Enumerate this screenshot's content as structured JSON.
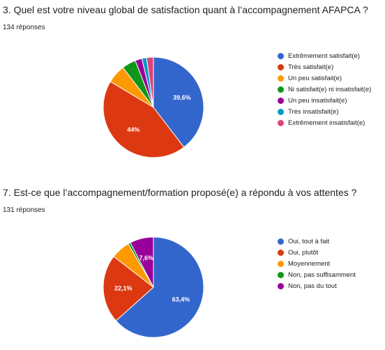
{
  "questions": [
    {
      "title": "3. Quel est votre niveau global de satisfaction quant à l’accompagnement AFAPCA ?",
      "responses": "134 réponses"
    },
    {
      "title": "7. Est-ce que l’accompagnement/formation proposé(e) a répondu à vos attentes ?",
      "responses": "131 réponses"
    }
  ],
  "chart_data": [
    {
      "type": "pie",
      "title": "3. Quel est votre niveau global de satisfaction quant à l’accompagnement AFAPCA ?",
      "categories": [
        "Extrêmement satisfait(e)",
        "Très satisfait(e)",
        "Un peu satisfait(e)",
        "Ni satisfait(e) ni insatisfait(e)",
        "Un peu insatisfait(e)",
        "Très insatisfait(e)",
        "Extrêmement insatisfait(e)"
      ],
      "values": [
        39.6,
        44.0,
        6.0,
        4.5,
        2.2,
        1.5,
        2.2
      ],
      "labels": [
        "39,6%",
        "44%",
        "",
        "",
        "",
        "",
        ""
      ],
      "colors": [
        "#3366cc",
        "#dc3912",
        "#ff9900",
        "#109618",
        "#990099",
        "#0099c6",
        "#dd4477"
      ],
      "legend_position": "right"
    },
    {
      "type": "pie",
      "title": "7. Est-ce que l’accompagnement/formation proposé(e) a répondu à vos attentes ?",
      "categories": [
        "Oui, tout à fait",
        "Oui, plutôt",
        "Moyennement",
        "Non, pas suffisamment",
        "Non, pas du tout"
      ],
      "values": [
        63.4,
        22.1,
        6.1,
        0.8,
        7.6
      ],
      "labels": [
        "63,4%",
        "22,1%",
        "",
        "",
        "7,6%"
      ],
      "colors": [
        "#3366cc",
        "#dc3912",
        "#ff9900",
        "#109618",
        "#990099"
      ],
      "legend_position": "right"
    }
  ]
}
